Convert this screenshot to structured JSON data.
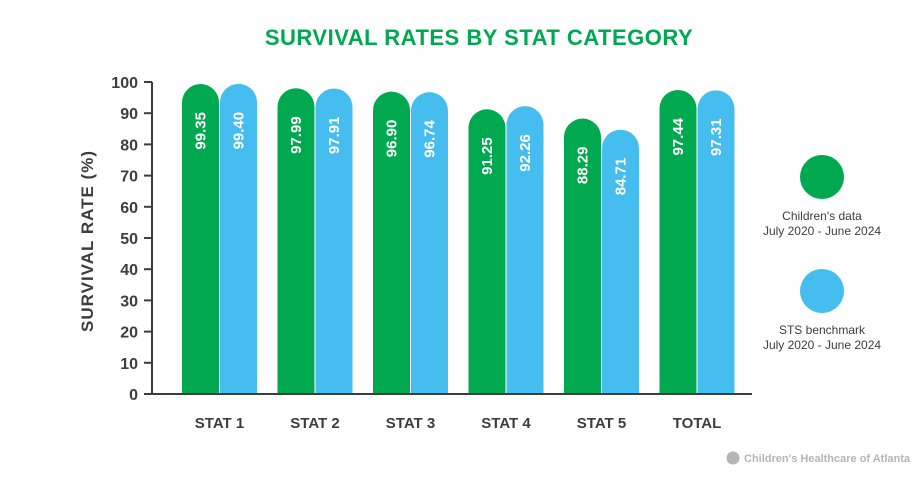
{
  "chart_data": {
    "type": "bar",
    "title": "SURVIVAL RATES BY STAT CATEGORY",
    "ylabel": "SURVIVAL RATE (%)",
    "xlabel": "",
    "ylim": [
      0,
      100
    ],
    "yticks": [
      0,
      10,
      20,
      30,
      40,
      50,
      60,
      70,
      80,
      90,
      100
    ],
    "categories": [
      "STAT 1",
      "STAT 2",
      "STAT 3",
      "STAT 4",
      "STAT 5",
      "TOTAL"
    ],
    "series": [
      {
        "legend_line1": "Children's data",
        "legend_line2": "July 2020 - June 2024",
        "color": "#00a94f",
        "values": [
          99.35,
          97.99,
          96.9,
          91.25,
          88.29,
          97.44
        ],
        "labels": [
          "99.35",
          "97.99",
          "96.90",
          "91.25",
          "88.29",
          "97.44"
        ]
      },
      {
        "legend_line1": "STS benchmark",
        "legend_line2": "July 2020 - June 2024",
        "color": "#45bdee",
        "values": [
          99.4,
          97.91,
          96.74,
          92.26,
          84.71,
          97.31
        ],
        "labels": [
          "99.40",
          "97.91",
          "96.74",
          "92.26",
          "84.71",
          "97.31"
        ]
      }
    ],
    "grid": false,
    "legend_position": "right",
    "colors": {
      "title": "#00a94f",
      "axis": "#3d3d3d"
    }
  },
  "branding": {
    "text": "Children's Healthcare of Atlanta",
    "logo_icon": "chop-logo-icon"
  }
}
